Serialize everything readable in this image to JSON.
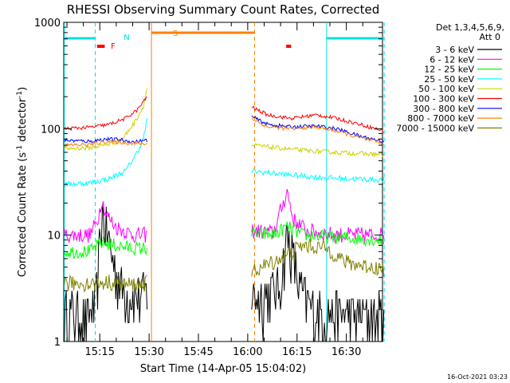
{
  "chart_data": {
    "type": "line",
    "title": "RHESSI Observing Summary Count Rates, Corrected",
    "xlabel": "Start Time (14-Apr-05 15:04:02)",
    "ylabel": "Corrected Count Rate (s⁻¹ detector⁻¹)",
    "ylabel_main": "Corrected Count Rate (s",
    "ylabel_exp1": "-1",
    "ylabel_mid": " detector",
    "ylabel_exp2": "-1",
    "ylabel_end": ")",
    "y_scale": "log",
    "ylim": [
      1,
      1000
    ],
    "xlim": [
      "15:04:02",
      "16:41:00"
    ],
    "x_ticks": [
      "15:15",
      "15:30",
      "15:45",
      "16:00",
      "16:15",
      "16:30"
    ],
    "y_ticks": [
      "1",
      "10",
      "100",
      "1000"
    ],
    "legend_header": [
      "Det 1,3,4,5,6,9,",
      "Att 0"
    ],
    "legend_placement": "right",
    "footer": "16-Oct-2021 03:23",
    "flags": [
      {
        "label": "F",
        "color": "#ff0000"
      },
      {
        "label": "N",
        "color": "#00e0e0"
      },
      {
        "label": "S",
        "color": "#ff8000"
      }
    ],
    "series": [
      {
        "name": "3 - 6 keV",
        "color": "#000000",
        "seg1": [
          [
            15.07,
            1.8
          ],
          [
            15.2,
            1.6
          ],
          [
            15.23,
            2.2
          ],
          [
            15.24,
            4
          ],
          [
            15.25,
            8
          ],
          [
            15.26,
            15
          ],
          [
            15.28,
            11
          ],
          [
            15.32,
            5
          ],
          [
            15.36,
            3
          ],
          [
            15.42,
            2.5
          ],
          [
            15.49,
            2.5
          ]
        ],
        "seg2": [
          [
            16.02,
            2.5
          ],
          [
            16.08,
            2.5
          ],
          [
            16.16,
            3
          ],
          [
            16.2,
            9
          ],
          [
            16.22,
            7
          ],
          [
            16.26,
            3
          ],
          [
            16.33,
            1.8
          ],
          [
            16.4,
            1.7
          ],
          [
            16.69,
            1.6
          ]
        ]
      },
      {
        "name": "6 - 12 keV",
        "color": "#ff00ff",
        "seg1": [
          [
            15.07,
            10
          ],
          [
            15.2,
            10
          ],
          [
            15.24,
            14
          ],
          [
            15.26,
            22
          ],
          [
            15.28,
            16
          ],
          [
            15.33,
            12
          ],
          [
            15.42,
            10
          ],
          [
            15.49,
            10
          ]
        ],
        "seg2": [
          [
            16.02,
            11
          ],
          [
            16.13,
            10.5
          ],
          [
            16.2,
            26
          ],
          [
            16.23,
            14
          ],
          [
            16.3,
            11
          ],
          [
            16.45,
            10
          ],
          [
            16.69,
            10
          ]
        ]
      },
      {
        "name": "12 - 25 keV",
        "color": "#00ff00",
        "seg1": [
          [
            15.07,
            7
          ],
          [
            15.2,
            7
          ],
          [
            15.26,
            8.5
          ],
          [
            15.33,
            8
          ],
          [
            15.42,
            7.5
          ],
          [
            15.49,
            7.5
          ]
        ],
        "seg2": [
          [
            16.02,
            10.5
          ],
          [
            16.13,
            10
          ],
          [
            16.2,
            12
          ],
          [
            16.28,
            10
          ],
          [
            16.45,
            9.5
          ],
          [
            16.69,
            9
          ]
        ]
      },
      {
        "name": "25 - 50 keV",
        "color": "#00ffff",
        "seg1": [
          [
            15.07,
            30
          ],
          [
            15.2,
            31
          ],
          [
            15.3,
            34
          ],
          [
            15.38,
            40
          ],
          [
            15.44,
            60
          ],
          [
            15.47,
            80
          ],
          [
            15.49,
            120
          ]
        ],
        "seg2": [
          [
            16.02,
            40
          ],
          [
            16.2,
            37
          ],
          [
            16.35,
            35
          ],
          [
            16.5,
            34
          ],
          [
            16.69,
            33
          ]
        ]
      },
      {
        "name": "50 - 100 keV",
        "color": "#d0d000",
        "seg1": [
          [
            15.07,
            65
          ],
          [
            15.2,
            66
          ],
          [
            15.3,
            72
          ],
          [
            15.36,
            78
          ],
          [
            15.42,
            110
          ],
          [
            15.47,
            160
          ],
          [
            15.49,
            240
          ]
        ],
        "seg2": [
          [
            16.02,
            70
          ],
          [
            16.15,
            66
          ],
          [
            16.3,
            62
          ],
          [
            16.45,
            60
          ],
          [
            16.69,
            57
          ]
        ]
      },
      {
        "name": "100 - 300 keV",
        "color": "#ff0000",
        "seg1": [
          [
            15.07,
            100
          ],
          [
            15.2,
            103
          ],
          [
            15.3,
            110
          ],
          [
            15.38,
            125
          ],
          [
            15.44,
            150
          ],
          [
            15.49,
            200
          ]
        ],
        "seg2": [
          [
            16.02,
            160
          ],
          [
            16.1,
            135
          ],
          [
            16.22,
            125
          ],
          [
            16.35,
            135
          ],
          [
            16.45,
            125
          ],
          [
            16.57,
            110
          ],
          [
            16.69,
            95
          ]
        ]
      },
      {
        "name": "300 - 800 keV",
        "color": "#0000ff",
        "seg1": [
          [
            15.07,
            78
          ],
          [
            15.2,
            76
          ],
          [
            15.28,
            80
          ],
          [
            15.35,
            79
          ],
          [
            15.42,
            75
          ],
          [
            15.49,
            78
          ]
        ],
        "seg2": [
          [
            16.02,
            130
          ],
          [
            16.1,
            110
          ],
          [
            16.22,
            104
          ],
          [
            16.35,
            106
          ],
          [
            16.45,
            100
          ],
          [
            16.57,
            85
          ],
          [
            16.69,
            76
          ]
        ]
      },
      {
        "name": "800 - 7000 keV",
        "color": "#ff8000",
        "seg1": [
          [
            15.07,
            70
          ],
          [
            15.2,
            71
          ],
          [
            15.28,
            76
          ],
          [
            15.36,
            74
          ],
          [
            15.49,
            72
          ]
        ],
        "seg2": [
          [
            16.02,
            125
          ],
          [
            16.1,
            104
          ],
          [
            16.22,
            100
          ],
          [
            16.35,
            104
          ],
          [
            16.45,
            95
          ],
          [
            16.57,
            82
          ],
          [
            16.69,
            72
          ]
        ]
      },
      {
        "name": "7000 - 15000 keV",
        "color": "#808000",
        "seg1": [
          [
            15.07,
            3.5
          ],
          [
            15.2,
            3.5
          ],
          [
            15.3,
            3.6
          ],
          [
            15.4,
            3.4
          ],
          [
            15.49,
            3.5
          ]
        ],
        "seg2": [
          [
            16.02,
            4.5
          ],
          [
            16.12,
            5.5
          ],
          [
            16.2,
            6.5
          ],
          [
            16.28,
            8
          ],
          [
            16.4,
            7.5
          ],
          [
            16.5,
            5.5
          ],
          [
            16.69,
            4.8
          ]
        ]
      }
    ]
  }
}
